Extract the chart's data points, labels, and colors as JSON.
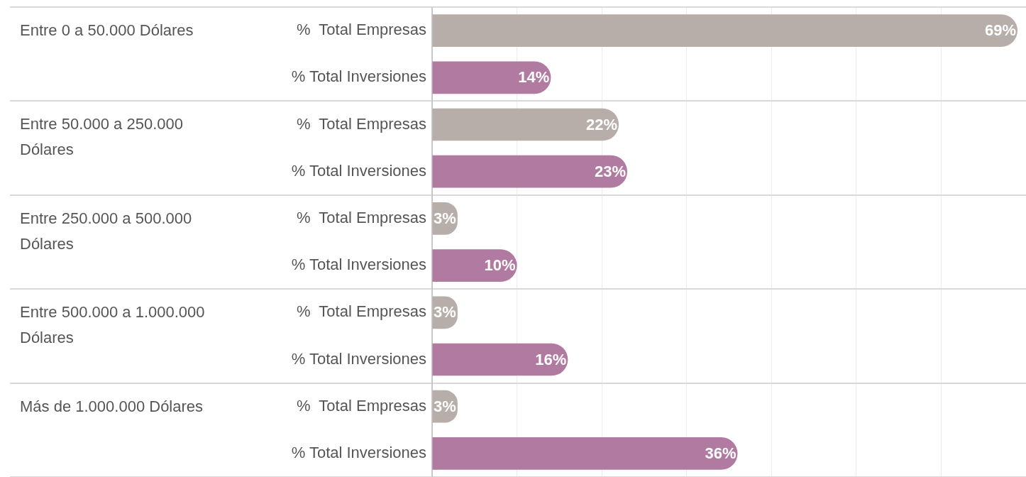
{
  "chart_data": {
    "type": "bar",
    "orientation": "horizontal",
    "categories": [
      "Entre 0 a 50.000 Dólares",
      "Entre 50.000 a 250.000 Dólares",
      "Entre 250.000 a 500.000 Dólares",
      "Entre 500.000 a 1.000.000 Dólares",
      "Más de 1.000.000 Dólares"
    ],
    "series": [
      {
        "name": "%  Total Empresas",
        "color": "#b8aea9",
        "values": [
          69,
          22,
          3,
          3,
          3
        ],
        "value_labels": [
          "69%",
          "22%",
          "3%",
          "3%",
          "3%"
        ]
      },
      {
        "name": "% Total Inversiones",
        "color": "#b07aa1",
        "values": [
          14,
          23,
          10,
          16,
          36
        ],
        "value_labels": [
          "14%",
          "23%",
          "10%",
          "16%",
          "36%"
        ]
      }
    ],
    "xlim": [
      0,
      70
    ],
    "xticks": [
      {
        "value": 0,
        "label": null
      },
      {
        "value": 10,
        "label": null
      },
      {
        "value": 20,
        "label": null
      },
      {
        "value": 30,
        "label": null
      },
      {
        "value": 40,
        "label": null
      },
      {
        "value": 50,
        "label": null
      },
      {
        "value": 60,
        "label": null
      }
    ],
    "tick_labels": "y",
    "grid": true,
    "legend": false
  }
}
